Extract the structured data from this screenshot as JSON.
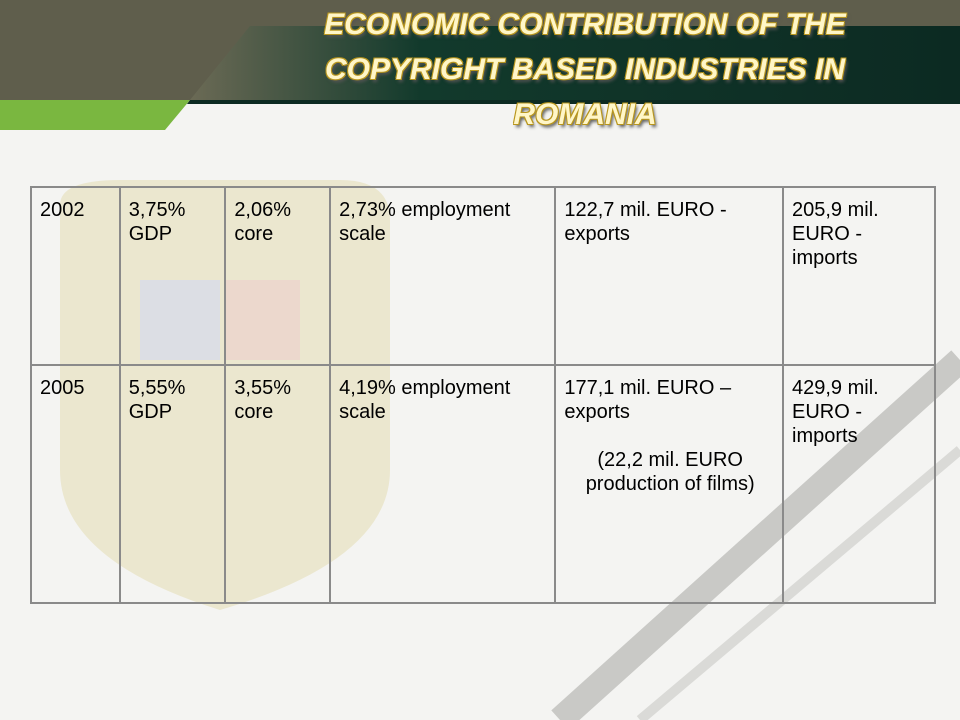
{
  "title": "ECONOMIC CONTRIBUTION OF THE COPYRIGHT BASED INDUSTRIES IN ROMANIA",
  "table": {
    "rows": [
      [
        "2002",
        "3,75% GDP",
        "2,06% core",
        "2,73% employment scale",
        "122,7 mil. EURO - exports",
        "205,9 mil. EURO - imports"
      ],
      [
        "2005",
        "5,55% GDP",
        "3,55% core",
        "4,19% employment scale",
        [
          "177,1 mil. EURO – exports",
          "(22,2 mil. EURO production of films)"
        ],
        "429,9 mil. EURO - imports"
      ]
    ]
  }
}
